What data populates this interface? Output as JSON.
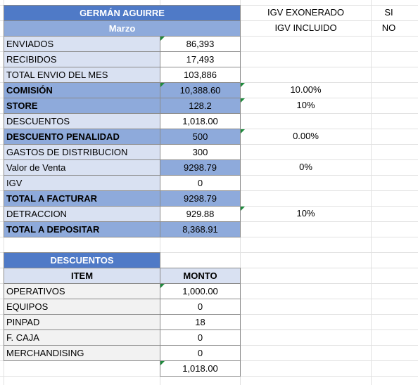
{
  "header": {
    "title": "GERMÁN AGUIRRE",
    "month": "Marzo"
  },
  "options": [
    {
      "label": "IGV EXONERADO",
      "value": "SI"
    },
    {
      "label": "IGV INCLUIDO",
      "value": "NO"
    }
  ],
  "rows": [
    {
      "label": "ENVIADOS",
      "value": "86,393"
    },
    {
      "label": "RECIBIDOS",
      "value": "17,493"
    },
    {
      "label": "TOTAL ENVIO DEL MES",
      "value": "103,886"
    },
    {
      "label": "COMISIÓN",
      "value": "10,388.60",
      "note": "10.00%"
    },
    {
      "label": "STORE",
      "value": "128.2",
      "note": "10%"
    },
    {
      "label": "DESCUENTOS",
      "value": "1,018.00"
    },
    {
      "label": "DESCUENTO PENALIDAD",
      "value": "500",
      "note": "0.00%"
    },
    {
      "label": "GASTOS DE DISTRIBUCION",
      "value": "300"
    },
    {
      "label": "Valor de Venta",
      "value": "9298.79",
      "note": "0%"
    },
    {
      "label": "IGV",
      "value": "0"
    },
    {
      "label": "TOTAL A FACTURAR",
      "value": "9298.79"
    },
    {
      "label": "DETRACCION",
      "value": "929.88",
      "note": "10%"
    },
    {
      "label": "TOTAL A DEPOSITAR",
      "value": "8,368.91"
    }
  ],
  "discounts": {
    "title": "DESCUENTOS",
    "columns": [
      "ITEM",
      "MONTO"
    ],
    "rows": [
      [
        "OPERATIVOS",
        "1,000.00"
      ],
      [
        "EQUIPOS",
        "0"
      ],
      [
        "PINPAD",
        "18"
      ],
      [
        "F. CAJA",
        "0"
      ],
      [
        "MERCHANDISING",
        "0"
      ]
    ],
    "total": "1,018.00"
  }
}
